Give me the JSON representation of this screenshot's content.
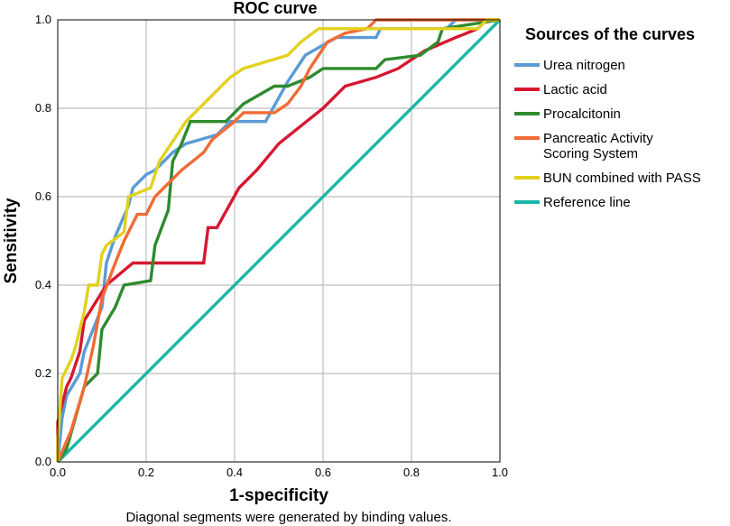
{
  "chart_data": {
    "type": "line",
    "title": "ROC curve",
    "xlabel": "1-specificity",
    "ylabel": "Sensitivity",
    "xlim": [
      0,
      1
    ],
    "ylim": [
      0,
      1
    ],
    "x_ticks": [
      "0.0",
      "0.2",
      "0.4",
      "0.6",
      "0.8",
      "1.0"
    ],
    "y_ticks": [
      "0.0",
      "0.2",
      "0.4",
      "0.6",
      "0.8",
      "1.0"
    ],
    "grid": true,
    "legend_title": "Sources of the curves",
    "legend_position": "right",
    "footnote": "Diagonal segments were generated by binding values.",
    "series": [
      {
        "name": "Urea nitrogen",
        "color": "#5b9bd5",
        "points": [
          [
            0,
            0
          ],
          [
            0.01,
            0.1
          ],
          [
            0.02,
            0.15
          ],
          [
            0.05,
            0.2
          ],
          [
            0.06,
            0.25
          ],
          [
            0.08,
            0.3
          ],
          [
            0.1,
            0.35
          ],
          [
            0.11,
            0.45
          ],
          [
            0.13,
            0.51
          ],
          [
            0.16,
            0.58
          ],
          [
            0.17,
            0.62
          ],
          [
            0.2,
            0.65
          ],
          [
            0.22,
            0.66
          ],
          [
            0.26,
            0.7
          ],
          [
            0.29,
            0.72
          ],
          [
            0.36,
            0.74
          ],
          [
            0.39,
            0.77
          ],
          [
            0.47,
            0.77
          ],
          [
            0.52,
            0.86
          ],
          [
            0.56,
            0.92
          ],
          [
            0.63,
            0.96
          ],
          [
            0.72,
            0.96
          ],
          [
            0.73,
            0.98
          ],
          [
            0.88,
            0.98
          ],
          [
            0.9,
            1
          ],
          [
            1,
            1
          ]
        ]
      },
      {
        "name": "Lactic acid",
        "color": "#d7172f",
        "points": [
          [
            0,
            0
          ],
          [
            0,
            0.09
          ],
          [
            0.02,
            0.17
          ],
          [
            0.03,
            0.19
          ],
          [
            0.05,
            0.25
          ],
          [
            0.06,
            0.32
          ],
          [
            0.11,
            0.4
          ],
          [
            0.17,
            0.45
          ],
          [
            0.33,
            0.45
          ],
          [
            0.34,
            0.53
          ],
          [
            0.36,
            0.53
          ],
          [
            0.41,
            0.62
          ],
          [
            0.43,
            0.64
          ],
          [
            0.45,
            0.66
          ],
          [
            0.5,
            0.72
          ],
          [
            0.55,
            0.76
          ],
          [
            0.6,
            0.8
          ],
          [
            0.65,
            0.85
          ],
          [
            0.72,
            0.87
          ],
          [
            0.77,
            0.89
          ],
          [
            0.83,
            0.93
          ],
          [
            0.9,
            0.96
          ],
          [
            0.95,
            0.98
          ],
          [
            0.97,
            1
          ],
          [
            1,
            1
          ]
        ]
      },
      {
        "name": "Procalcitonin",
        "color": "#2e8b2e",
        "points": [
          [
            0,
            0
          ],
          [
            0.02,
            0.03
          ],
          [
            0.04,
            0.1
          ],
          [
            0.06,
            0.17
          ],
          [
            0.09,
            0.2
          ],
          [
            0.1,
            0.3
          ],
          [
            0.13,
            0.35
          ],
          [
            0.15,
            0.4
          ],
          [
            0.21,
            0.41
          ],
          [
            0.22,
            0.49
          ],
          [
            0.25,
            0.57
          ],
          [
            0.26,
            0.68
          ],
          [
            0.28,
            0.72
          ],
          [
            0.3,
            0.77
          ],
          [
            0.38,
            0.77
          ],
          [
            0.42,
            0.81
          ],
          [
            0.49,
            0.85
          ],
          [
            0.52,
            0.85
          ],
          [
            0.57,
            0.87
          ],
          [
            0.6,
            0.89
          ],
          [
            0.72,
            0.89
          ],
          [
            0.74,
            0.91
          ],
          [
            0.82,
            0.92
          ],
          [
            0.86,
            0.95
          ],
          [
            0.87,
            0.98
          ],
          [
            1,
            1
          ]
        ]
      },
      {
        "name": "Pancreatic Activity Scoring System",
        "color": "#ef6c35",
        "points": [
          [
            0,
            0
          ],
          [
            0.03,
            0.07
          ],
          [
            0.06,
            0.17
          ],
          [
            0.08,
            0.26
          ],
          [
            0.1,
            0.37
          ],
          [
            0.13,
            0.45
          ],
          [
            0.15,
            0.5
          ],
          [
            0.18,
            0.56
          ],
          [
            0.2,
            0.56
          ],
          [
            0.22,
            0.6
          ],
          [
            0.28,
            0.66
          ],
          [
            0.33,
            0.7
          ],
          [
            0.35,
            0.73
          ],
          [
            0.4,
            0.77
          ],
          [
            0.42,
            0.79
          ],
          [
            0.49,
            0.79
          ],
          [
            0.52,
            0.81
          ],
          [
            0.55,
            0.85
          ],
          [
            0.57,
            0.89
          ],
          [
            0.61,
            0.95
          ],
          [
            0.65,
            0.97
          ],
          [
            0.7,
            0.98
          ],
          [
            0.72,
            1
          ],
          [
            1,
            1
          ]
        ]
      },
      {
        "name": "BUN combined with PASS",
        "color": "#e2d11f",
        "points": [
          [
            0,
            0
          ],
          [
            0,
            0.05
          ],
          [
            0.01,
            0.19
          ],
          [
            0.03,
            0.23
          ],
          [
            0.04,
            0.26
          ],
          [
            0.06,
            0.34
          ],
          [
            0.07,
            0.4
          ],
          [
            0.09,
            0.4
          ],
          [
            0.1,
            0.47
          ],
          [
            0.11,
            0.49
          ],
          [
            0.15,
            0.52
          ],
          [
            0.16,
            0.6
          ],
          [
            0.21,
            0.62
          ],
          [
            0.23,
            0.68
          ],
          [
            0.27,
            0.74
          ],
          [
            0.29,
            0.77
          ],
          [
            0.34,
            0.82
          ],
          [
            0.39,
            0.87
          ],
          [
            0.42,
            0.89
          ],
          [
            0.52,
            0.92
          ],
          [
            0.55,
            0.95
          ],
          [
            0.59,
            0.98
          ],
          [
            0.95,
            0.98
          ],
          [
            0.97,
            1
          ],
          [
            1,
            1
          ]
        ]
      },
      {
        "name": "Reference line",
        "color": "#1ab6a8",
        "points": [
          [
            0,
            0
          ],
          [
            1,
            1
          ]
        ]
      }
    ]
  }
}
